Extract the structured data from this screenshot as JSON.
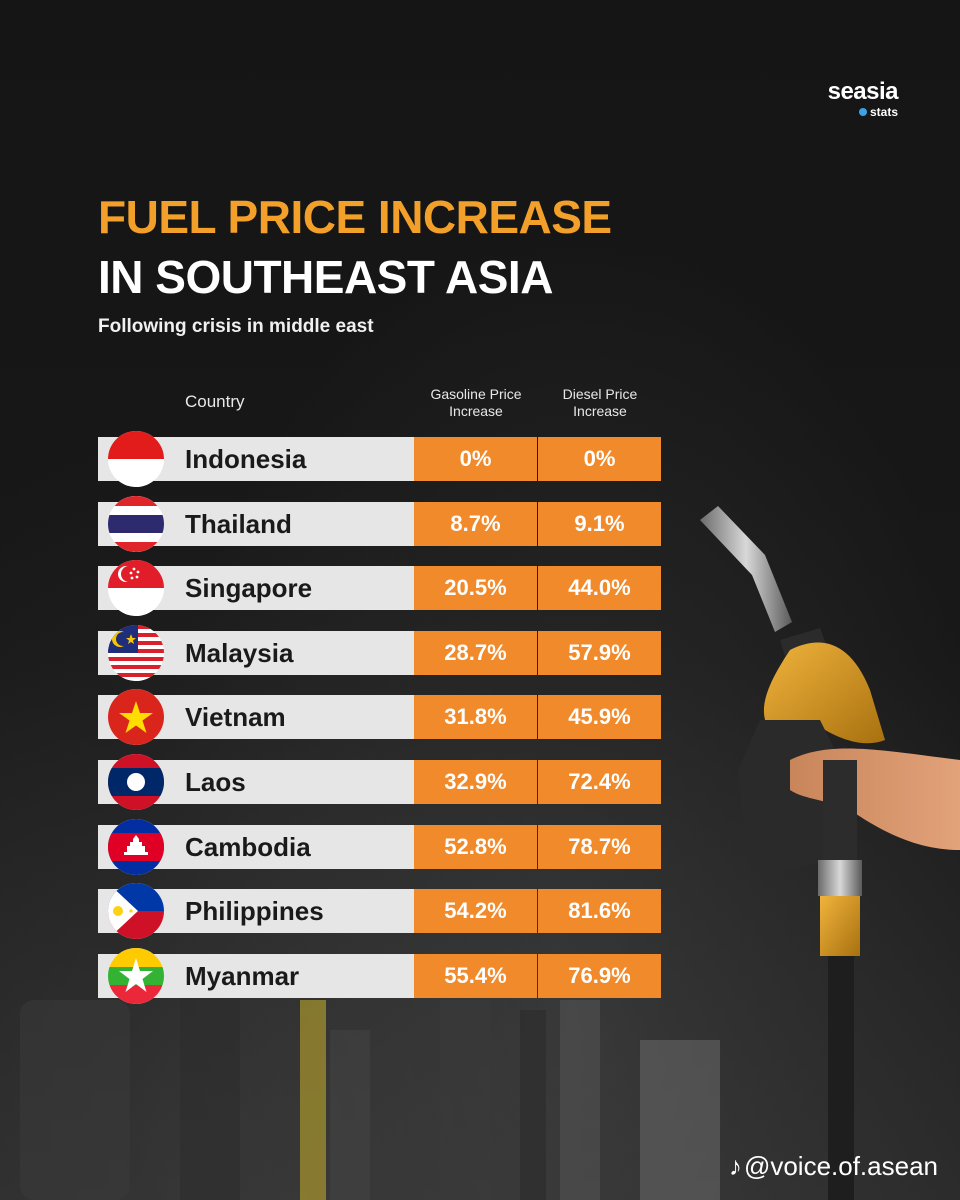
{
  "logo": {
    "main": "seasia",
    "sub": "stats"
  },
  "title_line1": "FUEL PRICE INCREASE",
  "title_line2": "IN SOUTHEAST ASIA",
  "subtitle": "Following crisis in middle east",
  "watermark": "@voice.of.asean",
  "colors": {
    "accent": "#f2a02a",
    "cell": "#f08a2a",
    "row": "#e6e6e6",
    "background": "#141414"
  },
  "chart_data": {
    "type": "table",
    "title": "FUEL PRICE INCREASE IN SOUTHEAST ASIA",
    "subtitle": "Following crisis in middle east",
    "columns": [
      "Country",
      "Gasoline Price Increase",
      "Diesel Price Increase"
    ],
    "rows": [
      {
        "country": "Indonesia",
        "flag": "indonesia-flag-icon",
        "gasoline": "0%",
        "diesel": "0%"
      },
      {
        "country": "Thailand",
        "flag": "thailand-flag-icon",
        "gasoline": "8.7%",
        "diesel": "9.1%"
      },
      {
        "country": "Singapore",
        "flag": "singapore-flag-icon",
        "gasoline": "20.5%",
        "diesel": "44.0%"
      },
      {
        "country": "Malaysia",
        "flag": "malaysia-flag-icon",
        "gasoline": "28.7%",
        "diesel": "57.9%"
      },
      {
        "country": "Vietnam",
        "flag": "vietnam-flag-icon",
        "gasoline": "31.8%",
        "diesel": "45.9%"
      },
      {
        "country": "Laos",
        "flag": "laos-flag-icon",
        "gasoline": "32.9%",
        "diesel": "72.4%"
      },
      {
        "country": "Cambodia",
        "flag": "cambodia-flag-icon",
        "gasoline": "52.8%",
        "diesel": "78.7%"
      },
      {
        "country": "Philippines",
        "flag": "philippines-flag-icon",
        "gasoline": "54.2%",
        "diesel": "81.6%"
      },
      {
        "country": "Myanmar",
        "flag": "myanmar-flag-icon",
        "gasoline": "55.4%",
        "diesel": "76.9%"
      }
    ]
  }
}
